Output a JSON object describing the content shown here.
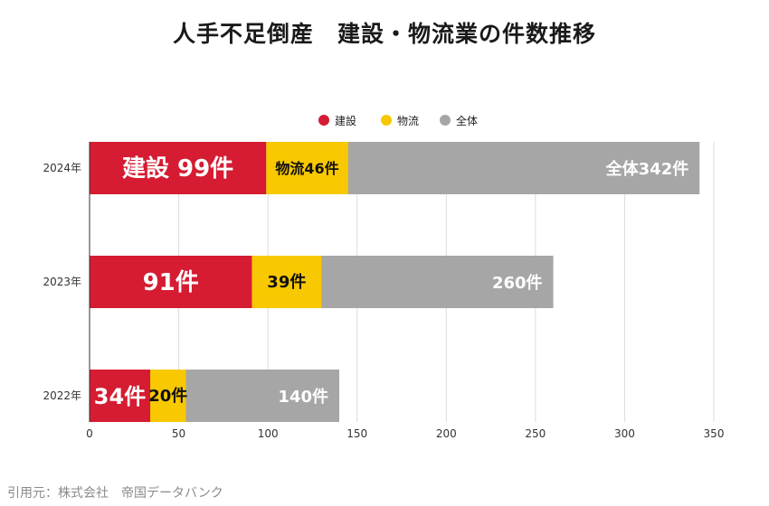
{
  "title": "人手不足倒産　建設・物流業の件数推移",
  "source": "引用元：株式会社　帝国データバンク",
  "colors": {
    "建設": "#d51c32",
    "物流": "#f8c800",
    "全体": "#a6a6a6",
    "grid": "#dcdcdc",
    "axis": "#333333"
  },
  "chart_data": {
    "type": "bar",
    "orientation": "horizontal",
    "stacked": "overlay",
    "title": "人手不足倒産　建設・物流業の件数推移",
    "xlabel": "",
    "ylabel": "",
    "xlim": [
      0,
      350
    ],
    "xticks": [
      0,
      50,
      100,
      150,
      200,
      250,
      300,
      350
    ],
    "grid": "vertical",
    "legend_position": "top",
    "categories": [
      "2024年",
      "2023年",
      "2022年"
    ],
    "series": [
      {
        "name": "建設",
        "values": [
          99,
          91,
          34
        ],
        "labels": [
          "建設 99件",
          "91件",
          "34件"
        ]
      },
      {
        "name": "物流",
        "values": [
          46,
          39,
          20
        ],
        "labels": [
          "物流46件",
          "39件",
          "20件"
        ]
      },
      {
        "name": "全体",
        "values": [
          342,
          260,
          140
        ],
        "labels": [
          "全体342件",
          "260件",
          "140件"
        ]
      }
    ]
  }
}
